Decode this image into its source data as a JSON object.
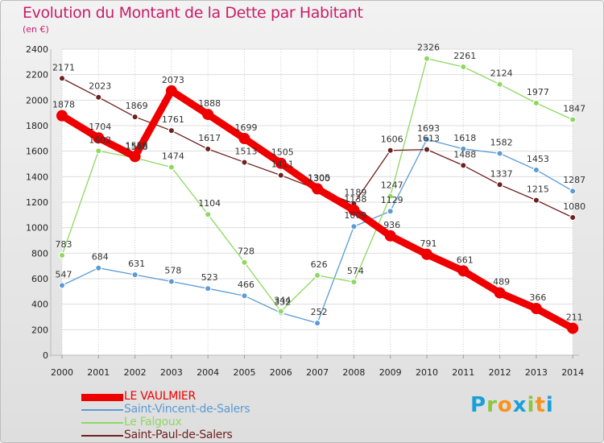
{
  "title": "Evolution du Montant de la Dette par Habitant",
  "subtitle": "(en €)",
  "logo": {
    "text": "Proxiti",
    "colors": [
      "#1aa0d8",
      "#8cc63f",
      "#f7931e",
      "#1aa0d8",
      "#8cc63f",
      "#f7931e",
      "#1aa0d8"
    ]
  },
  "chart_data": {
    "type": "line",
    "title": "Evolution du Montant de la Dette par Habitant",
    "subtitle": "(en €)",
    "xlabel": "",
    "ylabel": "",
    "ylim": [
      0,
      2400
    ],
    "yticks": [
      0,
      200,
      400,
      600,
      800,
      1000,
      1200,
      1400,
      1600,
      1800,
      2000,
      2200,
      2400
    ],
    "grid": true,
    "legend_position": "bottom-left",
    "x": [
      "2000",
      "2001",
      "2002",
      "2003",
      "2004",
      "2005",
      "2006",
      "2007",
      "2008",
      "2009",
      "2010",
      "2011",
      "2012",
      "2013",
      "2014"
    ],
    "series": [
      {
        "name": "LE VAULMIER",
        "color": "#ee0000",
        "values": [
          1878,
          1704,
          1558,
          2073,
          1888,
          1699,
          1505,
          1305,
          1138,
          936,
          791,
          661,
          489,
          366,
          211
        ],
        "labels": [
          "1878",
          "1704",
          "1558",
          "2073",
          "1888",
          "1699",
          "1505",
          "1305",
          "1138",
          "936",
          "791",
          "661",
          "489",
          "366",
          "211"
        ]
      },
      {
        "name": "Saint-Vincent-de-Salers",
        "color": "#5b9bd5",
        "values": [
          547,
          684,
          631,
          578,
          523,
          466,
          332,
          252,
          1009,
          1129,
          1693,
          1618,
          1582,
          1453,
          1287
        ],
        "labels": [
          "547",
          "684",
          "631",
          "578",
          "523",
          "466",
          "332",
          "252",
          "1009",
          "1129",
          "1693",
          "1618",
          "1582",
          "1453",
          "1287"
        ]
      },
      {
        "name": "Le Falgoux",
        "color": "#8ed860",
        "values": [
          783,
          1602,
          1548,
          1474,
          1104,
          728,
          344,
          626,
          574,
          1247,
          2326,
          2261,
          2124,
          1977,
          1847
        ],
        "labels": [
          "783",
          "1602",
          "1548",
          "1474",
          "1104",
          "728",
          "344",
          "626",
          "574",
          "1247",
          "2326",
          "2261",
          "2124",
          "1977",
          "1847"
        ]
      },
      {
        "name": "Saint-Paul-de-Salers",
        "color": "#6e1f1f",
        "values": [
          2171,
          2023,
          1869,
          1761,
          1617,
          1513,
          1411,
          1300,
          1189,
          1606,
          1613,
          1488,
          1337,
          1215,
          1080
        ],
        "labels": [
          "2171",
          "2023",
          "1869",
          "1761",
          "1617",
          "1513",
          "1411",
          "1300",
          "1189",
          "1606",
          "1613",
          "1488",
          "1337",
          "1215",
          "1080"
        ]
      }
    ]
  }
}
